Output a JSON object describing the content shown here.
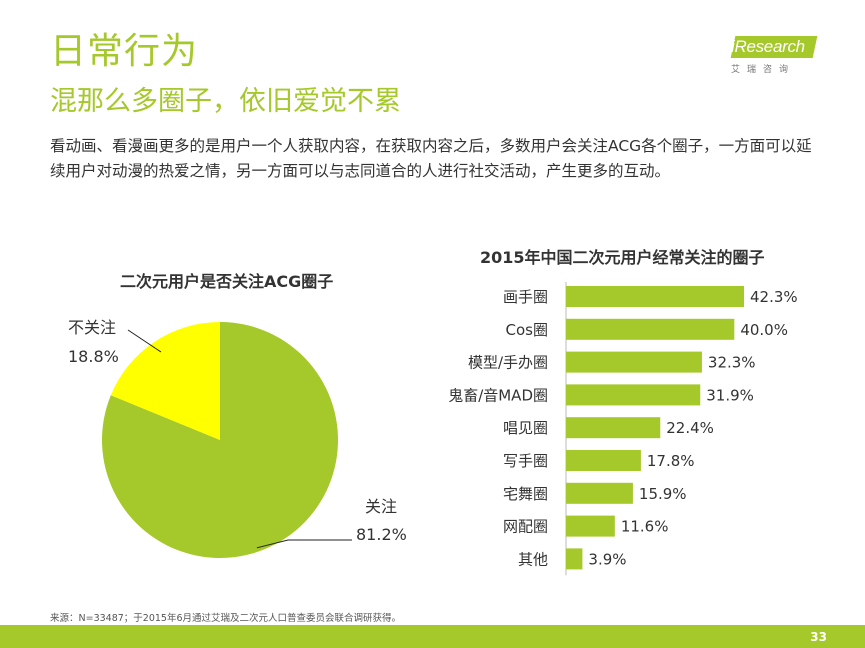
{
  "header": {
    "title": "日常行为",
    "subtitle": "混那么多圈子，依旧爱觉不累",
    "description": "看动画、看漫画更多的是用户一个人获取内容，在获取内容之后，多数用户会关注ACG各个圈子，一方面可以延续用户对动漫的热爱之情，另一方面可以与志同道合的人进行社交活动，产生更多的互动。"
  },
  "logo": {
    "name": "iResearch",
    "subtitle": "艾瑞咨询"
  },
  "chart_data": [
    {
      "type": "pie",
      "title": "二次元用户是否关注ACG圈子",
      "slices": [
        {
          "label": "关注",
          "value": 81.2,
          "value_label": "81.2%",
          "color": "#a5c82a"
        },
        {
          "label": "不关注",
          "value": 18.8,
          "value_label": "18.8%",
          "color": "#ffff00"
        }
      ]
    },
    {
      "type": "bar",
      "orientation": "horizontal",
      "title": "2015年中国二次元用户经常关注的圈子",
      "categories": [
        "画手圈",
        "Cos圈",
        "模型/手办圈",
        "鬼畜/音MAD圈",
        "唱见圈",
        "写手圈",
        "宅舞圈",
        "网配圈",
        "其他"
      ],
      "values": [
        42.3,
        40.0,
        32.3,
        31.9,
        22.4,
        17.8,
        15.9,
        11.6,
        3.9
      ],
      "value_labels": [
        "42.3%",
        "40.0%",
        "32.3%",
        "31.9%",
        "22.4%",
        "17.8%",
        "15.9%",
        "11.6%",
        "3.9%"
      ],
      "xlim": [
        0,
        42.3
      ],
      "color": "#a5c82a"
    }
  ],
  "footer": {
    "source": "来源：N=33487；于2015年6月通过艾瑞及二次元人口普查委员会联合调研获得。",
    "page_number": "33"
  }
}
